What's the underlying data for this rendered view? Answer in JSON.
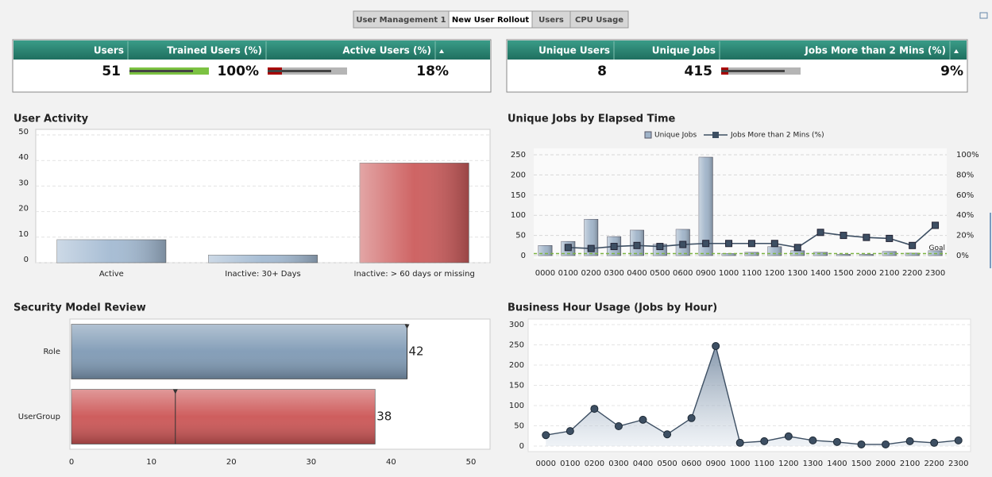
{
  "tabs": [
    "User Management 1",
    "New User Rollout",
    "Users",
    "CPU Usage"
  ],
  "active_tab": 1,
  "kpi_tables": [
    {
      "cells": [
        {
          "header": "Users",
          "value": 51
        },
        {
          "header": "Trained Users (%)",
          "value": 100,
          "label": "100%",
          "bullet_color": "#7cc242"
        },
        {
          "header": "Active Users (%)",
          "value": 18,
          "label": "18%",
          "bullet_color": "#a80000"
        }
      ]
    },
    {
      "cells": [
        {
          "header": "Unique Users",
          "value": 8
        },
        {
          "header": "Unique Jobs",
          "value": 415
        },
        {
          "header": "Jobs More than 2 Mins (%)",
          "value": 9,
          "label": "9%",
          "bullet_color": "#a80000"
        }
      ]
    }
  ],
  "chart_data": [
    {
      "type": "bar",
      "title": "User Activity",
      "categories": [
        "Active",
        "Inactive: 30+ Days",
        "Inactive: > 60 days or missing"
      ],
      "values": [
        9,
        3,
        39
      ],
      "colors": [
        "#a3bad2",
        "#a3bad2",
        "#cc5c5c"
      ],
      "ylim": [
        0,
        50
      ],
      "yticks": [
        0,
        10,
        20,
        30,
        40,
        50
      ],
      "grid": true
    },
    {
      "type": "combo",
      "title": "Unique Jobs by Elapsed Time",
      "categories": [
        "0000",
        "0100",
        "0200",
        "0300",
        "0400",
        "0500",
        "0600",
        "0900",
        "1000",
        "1100",
        "1200",
        "1300",
        "1400",
        "1500",
        "2000",
        "2100",
        "2200",
        "2300"
      ],
      "series": [
        {
          "name": "Unique Jobs",
          "color": "#9fb3c8",
          "values": [
            25,
            35,
            90,
            47,
            63,
            28,
            65,
            244,
            5,
            8,
            22,
            12,
            8,
            3,
            3,
            10,
            6,
            12
          ]
        },
        {
          "name": "Jobs More than 2 Mins (%)",
          "color": "#3d4f63",
          "axis": "y2",
          "values": [
            null,
            8,
            7,
            9,
            10,
            9,
            11,
            12,
            12,
            12,
            12,
            8,
            23,
            20,
            18,
            17,
            10,
            30
          ]
        }
      ],
      "ylim": [
        0,
        250
      ],
      "yticks": [
        0,
        50,
        100,
        150,
        200,
        250
      ],
      "y2lim": [
        0,
        100
      ],
      "y2ticks": [
        {
          "value": 0,
          "label": "0%"
        },
        {
          "value": 20,
          "label": "20%"
        },
        {
          "value": 40,
          "label": "40%"
        },
        {
          "value": 60,
          "label": "60%"
        },
        {
          "value": 80,
          "label": "80%"
        },
        {
          "value": 100,
          "label": "100%"
        }
      ],
      "goal": {
        "value": 2,
        "label": "Goal",
        "color": "#7cb342"
      },
      "grid": true,
      "legend": "top"
    },
    {
      "type": "bar",
      "orientation": "horizontal",
      "title": "Security Model Review",
      "categories": [
        "Role",
        "UserGroup"
      ],
      "values": [
        42,
        38
      ],
      "colors": [
        "#7f9ab5",
        "#cc5555"
      ],
      "targets": [
        42,
        13
      ],
      "xlim": [
        0,
        50
      ],
      "xticks": [
        0,
        10,
        20,
        30,
        40,
        50
      ],
      "data_labels": true
    },
    {
      "type": "area",
      "title": "Business Hour Usage (Jobs by Hour)",
      "categories": [
        "0000",
        "0100",
        "0200",
        "0300",
        "0400",
        "0500",
        "0600",
        "0900",
        "1000",
        "1100",
        "1200",
        "1300",
        "1400",
        "1500",
        "2000",
        "2100",
        "2200",
        "2300"
      ],
      "values": [
        27,
        37,
        92,
        49,
        65,
        29,
        69,
        247,
        8,
        12,
        24,
        14,
        10,
        4,
        4,
        12,
        8,
        14
      ],
      "color": "#3d4f63",
      "ylim": [
        0,
        300
      ],
      "yticks": [
        0,
        50,
        100,
        150,
        200,
        250,
        300
      ],
      "grid": true
    }
  ]
}
